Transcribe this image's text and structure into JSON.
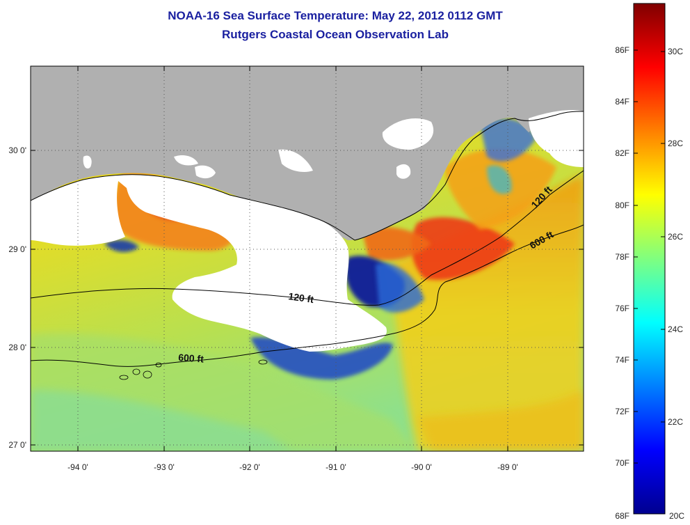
{
  "title": {
    "line1": "NOAA-16 Sea Surface Temperature:  May 22, 2012 0112 GMT",
    "line2": "Rutgers Coastal Ocean Observation Lab"
  },
  "map": {
    "lon_labels": [
      "-94 0'",
      "-93 0'",
      "-92 0'",
      "-91 0'",
      "-90 0'",
      "-89 0'"
    ],
    "lat_labels": [
      "30 0'",
      "29 0'",
      "28 0'",
      "27 0'"
    ],
    "contours": [
      {
        "label": "120 ft"
      },
      {
        "label": "120 ft"
      },
      {
        "label": "600 ft"
      },
      {
        "label": "600 ft"
      }
    ],
    "colors": {
      "land": "#b0b0b0",
      "cloud": "#ffffff",
      "grid": "#555555"
    }
  },
  "colorbar": {
    "fahrenheit_labels": [
      "86F",
      "84F",
      "82F",
      "80F",
      "78F",
      "76F",
      "74F",
      "72F",
      "70F",
      "68F"
    ],
    "celsius_labels": [
      "30C",
      "28C",
      "26C",
      "24C",
      "22C",
      "20C"
    ],
    "range_c": [
      20,
      31.1
    ],
    "colormap": "jet"
  }
}
